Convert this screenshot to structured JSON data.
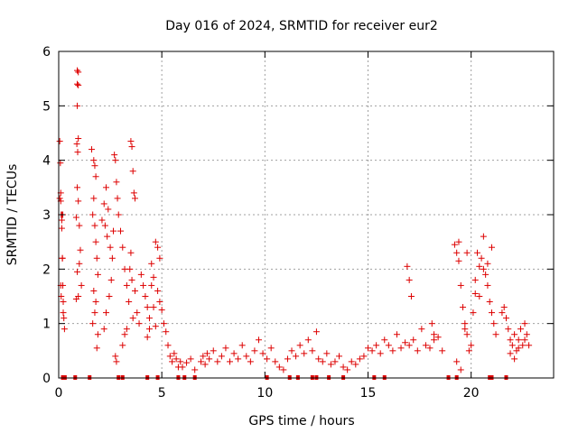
{
  "chart_data": {
    "type": "scatter",
    "title": "Day 016 of 2024, SRMTID for receiver eur2",
    "xlabel": "GPS time / hours",
    "ylabel": "SRMTID / TECUs",
    "xlim": [
      0,
      24
    ],
    "ylim": [
      0,
      6
    ],
    "xticks": [
      0,
      5,
      10,
      15,
      20
    ],
    "yticks": [
      0,
      1,
      2,
      3,
      4,
      5,
      6
    ],
    "grid": true,
    "marker": "+",
    "color": "#dd0000",
    "series": [
      {
        "name": "SRMTID",
        "x": [
          0.05,
          0.08,
          0.1,
          0.12,
          0.15,
          0.18,
          0.2,
          0.22,
          0.25,
          0.28,
          0.05,
          0.1,
          0.15,
          0.2,
          0.12,
          0.18,
          0.22,
          0.1,
          0.15,
          0.9,
          0.95,
          0.9,
          0.95,
          0.9,
          0.95,
          0.88,
          0.92,
          0.85,
          0.9,
          0.95,
          1.0,
          1.05,
          0.9,
          0.95,
          0.85,
          1.0,
          1.1,
          1.6,
          1.7,
          1.75,
          1.8,
          1.7,
          1.65,
          1.75,
          1.8,
          1.85,
          1.9,
          1.7,
          1.8,
          1.75,
          1.65,
          1.9,
          1.85,
          2.1,
          2.2,
          2.3,
          2.25,
          2.4,
          2.35,
          2.5,
          2.6,
          2.7,
          2.75,
          2.8,
          2.85,
          2.9,
          2.65,
          2.55,
          2.45,
          2.3,
          2.2,
          2.75,
          2.8,
          3.0,
          3.1,
          3.2,
          3.3,
          3.4,
          3.5,
          3.55,
          3.6,
          3.65,
          3.7,
          3.5,
          3.45,
          3.55,
          3.6,
          3.3,
          3.2,
          3.1,
          3.7,
          3.8,
          3.9,
          4.0,
          4.1,
          4.2,
          4.3,
          4.4,
          4.5,
          4.6,
          4.7,
          4.8,
          4.9,
          4.5,
          4.6,
          4.7,
          4.4,
          4.3,
          4.8,
          4.9,
          5.0,
          5.1,
          5.2,
          5.3,
          5.4,
          5.5,
          5.6,
          5.7,
          5.8,
          5.9,
          6.0,
          6.2,
          6.4,
          6.6,
          6.9,
          7.0,
          7.1,
          7.2,
          7.3,
          7.5,
          7.7,
          7.9,
          8.1,
          8.3,
          8.5,
          8.7,
          8.9,
          9.1,
          9.3,
          9.5,
          9.7,
          9.9,
          10.1,
          10.3,
          10.5,
          10.7,
          10.9,
          11.1,
          11.3,
          11.5,
          11.7,
          11.9,
          12.1,
          12.3,
          12.5,
          12.6,
          12.8,
          13.0,
          13.2,
          13.4,
          13.6,
          13.8,
          14.0,
          14.2,
          14.4,
          14.6,
          14.8,
          15.0,
          15.2,
          15.4,
          15.6,
          15.8,
          16.0,
          16.2,
          16.4,
          16.6,
          16.8,
          17.0,
          17.2,
          17.4,
          17.6,
          17.8,
          18.0,
          18.2,
          18.4,
          18.6,
          16.9,
          17.0,
          17.1,
          18.1,
          18.2,
          19.2,
          19.3,
          19.4,
          19.5,
          19.6,
          19.7,
          19.8,
          19.9,
          20.0,
          20.1,
          20.2,
          20.3,
          20.4,
          20.5,
          20.6,
          20.7,
          20.8,
          20.9,
          21.0,
          21.1,
          21.2,
          19.3,
          19.5,
          19.7,
          20.2,
          20.4,
          20.6,
          20.8,
          21.0,
          19.4,
          19.8,
          21.5,
          21.6,
          21.7,
          21.8,
          21.9,
          22.0,
          22.1,
          22.2,
          22.3,
          22.4,
          22.5,
          22.6,
          22.7,
          22.8,
          21.9,
          22.1,
          22.3,
          22.6,
          0.2,
          0.3,
          0.8,
          1.5,
          2.9,
          3.1,
          4.3,
          4.8,
          5.8,
          6.1,
          6.6,
          10.1,
          11.2,
          11.6,
          12.3,
          12.5,
          13.1,
          13.8,
          15.3,
          15.8,
          18.9,
          19.3,
          20.9,
          21.0,
          21.7
        ],
        "y": [
          4.35,
          3.95,
          3.4,
          3.0,
          2.75,
          2.2,
          1.7,
          1.4,
          1.1,
          0.9,
          3.3,
          3.25,
          2.9,
          3.0,
          1.5,
          2.2,
          1.2,
          1.7,
          3.0,
          5.65,
          5.62,
          5.4,
          5.38,
          5.0,
          4.4,
          4.3,
          4.15,
          2.95,
          3.5,
          3.25,
          2.8,
          2.35,
          1.95,
          1.5,
          1.45,
          2.1,
          1.7,
          4.2,
          4.0,
          3.9,
          3.7,
          3.3,
          3.0,
          2.8,
          2.5,
          2.2,
          1.9,
          1.6,
          1.4,
          1.2,
          1.0,
          0.8,
          0.55,
          2.9,
          3.2,
          3.5,
          2.8,
          3.1,
          2.6,
          2.4,
          2.2,
          4.1,
          4.0,
          3.6,
          3.3,
          3.0,
          2.7,
          1.8,
          1.5,
          1.2,
          0.9,
          0.4,
          0.3,
          2.7,
          2.4,
          2.0,
          1.7,
          1.4,
          4.35,
          4.25,
          3.8,
          3.4,
          3.3,
          2.3,
          2.0,
          1.8,
          1.1,
          0.9,
          0.8,
          0.6,
          1.6,
          1.2,
          1.0,
          1.9,
          1.7,
          1.5,
          1.3,
          1.1,
          2.1,
          1.85,
          2.5,
          2.4,
          2.2,
          1.7,
          1.3,
          0.95,
          0.9,
          0.75,
          1.6,
          1.4,
          1.25,
          1.0,
          0.85,
          0.6,
          0.4,
          0.3,
          0.45,
          0.35,
          0.2,
          0.3,
          0.2,
          0.28,
          0.35,
          0.15,
          0.3,
          0.4,
          0.25,
          0.45,
          0.35,
          0.5,
          0.3,
          0.4,
          0.55,
          0.3,
          0.45,
          0.35,
          0.6,
          0.4,
          0.3,
          0.5,
          0.7,
          0.45,
          0.35,
          0.55,
          0.3,
          0.2,
          0.15,
          0.35,
          0.5,
          0.4,
          0.6,
          0.45,
          0.7,
          0.5,
          0.85,
          0.35,
          0.3,
          0.45,
          0.25,
          0.3,
          0.4,
          0.2,
          0.15,
          0.3,
          0.25,
          0.35,
          0.4,
          0.55,
          0.5,
          0.6,
          0.45,
          0.7,
          0.6,
          0.5,
          0.8,
          0.55,
          0.65,
          0.6,
          0.7,
          0.5,
          0.9,
          0.6,
          0.55,
          0.7,
          0.75,
          0.5,
          2.05,
          1.8,
          1.5,
          1.0,
          0.8,
          2.45,
          2.3,
          2.15,
          1.7,
          1.3,
          1.0,
          0.8,
          0.5,
          0.6,
          1.2,
          1.55,
          2.3,
          2.05,
          2.2,
          2.0,
          1.9,
          1.7,
          1.4,
          1.2,
          1.0,
          0.8,
          0.3,
          0.15,
          0.9,
          1.8,
          1.5,
          2.6,
          2.1,
          2.4,
          2.5,
          2.3,
          1.2,
          1.3,
          1.1,
          0.9,
          0.7,
          0.6,
          0.8,
          0.5,
          0.7,
          0.9,
          0.6,
          1.0,
          0.8,
          0.6,
          0.45,
          0.35,
          0.55,
          0.7,
          0,
          0,
          0,
          0,
          0,
          0,
          0,
          0,
          0,
          0,
          0,
          0,
          0,
          0,
          0,
          0,
          0,
          0,
          0,
          0,
          0,
          0,
          0,
          0,
          0
        ]
      }
    ]
  }
}
